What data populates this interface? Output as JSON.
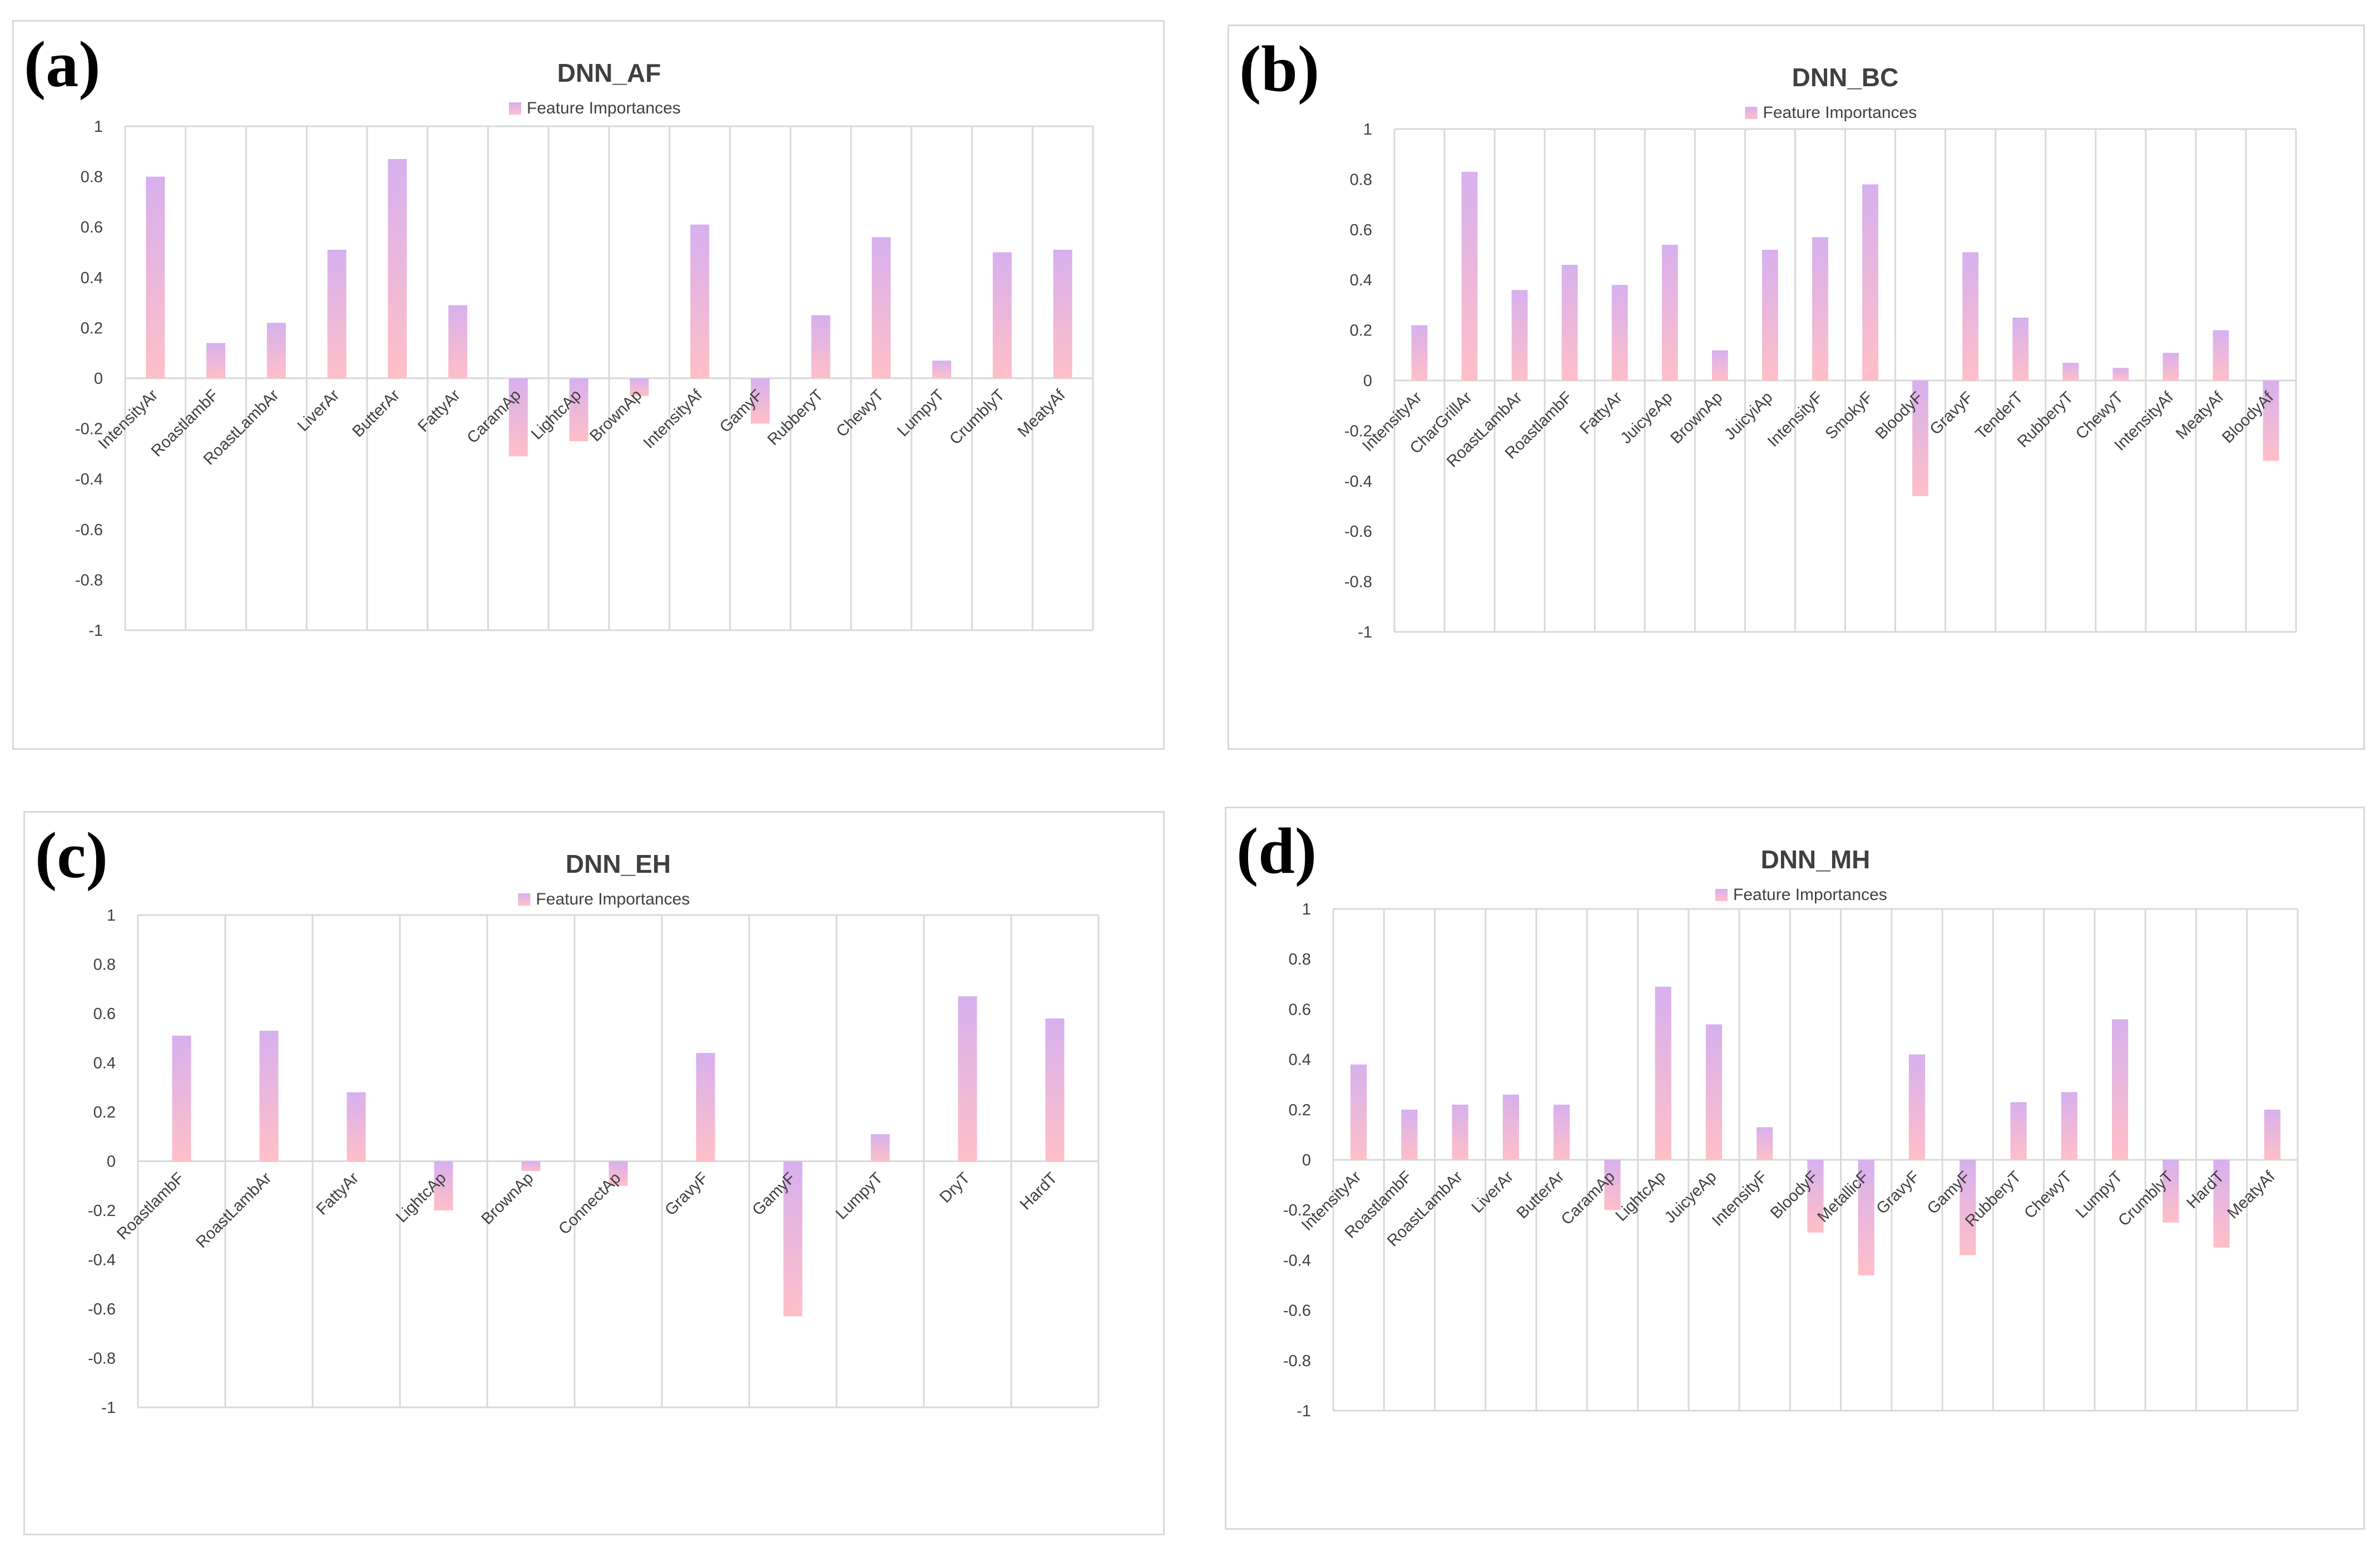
{
  "legend_label": "Feature Importances",
  "colors": {
    "bar_top": "#d7b0ee",
    "bar_bottom": "#ffbfc8",
    "grid": "#d9d9d9",
    "axis_text": "#404040",
    "title": "#404040"
  },
  "chart_data": [
    {
      "panel_letter": "(a)",
      "type": "bar",
      "title": "DNN_AF",
      "legend": [
        "Feature Importances"
      ],
      "ylim": [
        -1,
        1
      ],
      "yticks": [
        "1",
        "0.8",
        "0.6",
        "0.4",
        "0.2",
        "0",
        "-0.2",
        "-0.4",
        "-0.6",
        "-0.8",
        "-1"
      ],
      "categories": [
        "IntensityAr",
        "RoastlambF",
        "RoastLambAr",
        "LiverAr",
        "ButterAr",
        "FattyAr",
        "CaramAp",
        "LightcAp",
        "BrownAp",
        "IntensityAf",
        "GamyF",
        "RubberyT",
        "ChewyT",
        "LumpyT",
        "CrumblyT",
        "MeatyAf"
      ],
      "values": [
        0.8,
        0.14,
        0.22,
        0.51,
        0.87,
        0.29,
        -0.31,
        -0.25,
        -0.07,
        0.61,
        -0.18,
        0.25,
        0.56,
        0.07,
        0.5,
        0.51
      ]
    },
    {
      "panel_letter": "(b)",
      "type": "bar",
      "title": "DNN_BC",
      "legend": [
        "Feature Importances"
      ],
      "ylim": [
        -1,
        1
      ],
      "yticks": [
        "1",
        "0.8",
        "0.6",
        "0.4",
        "0.2",
        "0",
        "-0.2",
        "-0.4",
        "-0.6",
        "-0.8",
        "-1"
      ],
      "categories": [
        "IntensityAr",
        "CharGrillAr",
        "RoastLambAr",
        "RoastlambF",
        "FattyAr",
        "JuicyeAp",
        "BrownAp",
        "JuicyiAp",
        "IntensityF",
        "SmokyF",
        "BloodyF",
        "GravyF",
        "TenderT",
        "RubberyT",
        "ChewyT",
        "IntensityAf",
        "MeatyAf",
        "BloodyAf"
      ],
      "values": [
        0.22,
        0.83,
        0.36,
        0.46,
        0.38,
        0.54,
        0.12,
        0.52,
        0.57,
        0.78,
        -0.46,
        0.51,
        0.25,
        0.07,
        0.05,
        0.11,
        0.2,
        -0.32
      ]
    },
    {
      "panel_letter": "(c)",
      "type": "bar",
      "title": "DNN_EH",
      "legend": [
        "Feature Importances"
      ],
      "ylim": [
        -1,
        1
      ],
      "yticks": [
        "1",
        "0.8",
        "0.6",
        "0.4",
        "0.2",
        "0",
        "-0.2",
        "-0.4",
        "-0.6",
        "-0.8",
        "-1"
      ],
      "categories": [
        "RoastlambF",
        "RoastLambAr",
        "FattyAr",
        "LightcAp",
        "BrownAp",
        "ConnectAp",
        "GravyF",
        "GamyF",
        "LumpyT",
        "DryT",
        "HardT"
      ],
      "values": [
        0.51,
        0.53,
        0.28,
        -0.2,
        -0.04,
        -0.1,
        0.44,
        -0.63,
        0.11,
        0.67,
        0.58
      ]
    },
    {
      "panel_letter": "(d)",
      "type": "bar",
      "title": "DNN_MH",
      "legend": [
        "Feature Importances"
      ],
      "ylim": [
        -1,
        1
      ],
      "yticks": [
        "1",
        "0.8",
        "0.6",
        "0.4",
        "0.2",
        "0",
        "-0.2",
        "-0.4",
        "-0.6",
        "-0.8",
        "-1"
      ],
      "categories": [
        "IntensityAr",
        "RoastlambF",
        "RoastLambAr",
        "LiverAr",
        "ButterAr",
        "CaramAp",
        "LightcAp",
        "JuicyeAp",
        "IntensityF",
        "BloodyF",
        "MetallicF",
        "GravyF",
        "GamyF",
        "RubberyT",
        "ChewyT",
        "LumpyT",
        "CrumblyT",
        "HardT",
        "MeatyAf"
      ],
      "values": [
        0.38,
        0.2,
        0.22,
        0.26,
        0.22,
        -0.2,
        0.69,
        0.54,
        0.13,
        -0.29,
        -0.46,
        0.42,
        -0.38,
        0.23,
        0.27,
        0.56,
        -0.25,
        -0.35,
        0.2
      ]
    }
  ]
}
